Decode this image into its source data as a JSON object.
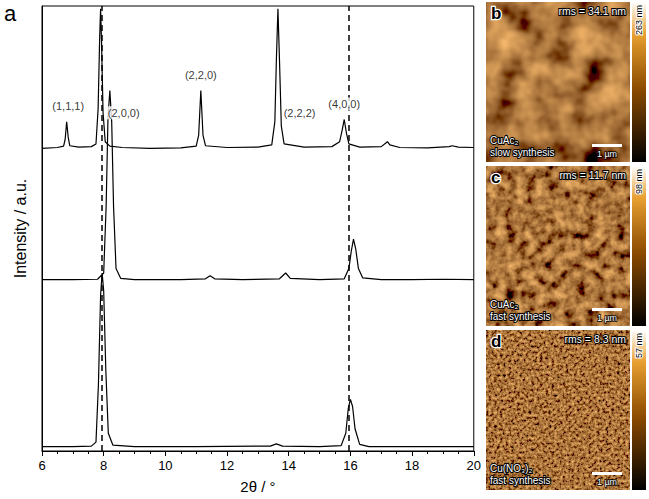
{
  "chart_data": {
    "type": "line",
    "panel_label": "a",
    "x_label": "2θ / °",
    "y_label": "Intensity / a.u.",
    "xlim": [
      6,
      20
    ],
    "xticks": [
      6,
      8,
      10,
      12,
      14,
      16,
      18,
      20
    ],
    "ylim": [
      0,
      100
    ],
    "yticks": [],
    "tick_labels": "x",
    "grid": false,
    "series": [
      {
        "color": "#000000",
        "x": [
          6.0,
          6.5,
          6.7,
          6.75,
          6.8,
          6.85,
          6.9,
          7.2,
          7.6,
          7.75,
          7.82,
          7.87,
          7.9,
          7.93,
          7.98,
          8.05,
          8.2,
          8.6,
          9.5,
          10.5,
          11.0,
          11.08,
          11.15,
          11.22,
          11.3,
          12.0,
          13.0,
          13.45,
          13.55,
          13.6,
          13.65,
          13.7,
          13.76,
          13.85,
          14.5,
          15.4,
          15.65,
          15.73,
          15.8,
          15.87,
          15.95,
          16.3,
          17.0,
          17.15,
          17.2,
          17.28,
          17.6,
          18.5,
          19.2,
          19.3,
          19.5,
          20.0
        ],
        "values": [
          68,
          68.2,
          68.5,
          70,
          74,
          70.5,
          68.6,
          68.3,
          68.4,
          69,
          77,
          93,
          99.4,
          92,
          76,
          69.5,
          68.5,
          68.2,
          68,
          68.1,
          68.5,
          71,
          81,
          71,
          68.6,
          68.2,
          68.3,
          68.8,
          74,
          88,
          99.4,
          88,
          73,
          69,
          68.3,
          68.4,
          69.5,
          72,
          74.5,
          71.5,
          69,
          68.3,
          68.4,
          69.2,
          69.5,
          68.8,
          68.2,
          68.1,
          68.4,
          68.6,
          68.3,
          68.2
        ]
      },
      {
        "color": "#000000",
        "x": [
          6.0,
          7.0,
          7.8,
          8.0,
          8.08,
          8.14,
          8.2,
          8.26,
          8.32,
          8.4,
          8.55,
          9.0,
          10.5,
          11.3,
          11.45,
          11.6,
          12.5,
          13.7,
          13.9,
          14.05,
          15.0,
          15.8,
          15.95,
          16.03,
          16.1,
          16.17,
          16.26,
          16.4,
          17.0,
          18.0,
          19.0,
          20.0
        ],
        "values": [
          38.5,
          38.5,
          38.6,
          40,
          55,
          75,
          81,
          74,
          55,
          41,
          38.8,
          38.5,
          38.5,
          38.7,
          39.4,
          38.7,
          38.5,
          38.7,
          40,
          38.8,
          38.5,
          38.7,
          41,
          45,
          47.6,
          45.5,
          41,
          38.9,
          38.5,
          38.5,
          38.6,
          38.5
        ]
      },
      {
        "color": "#000000",
        "x": [
          6.0,
          7.0,
          7.6,
          7.75,
          7.83,
          7.9,
          7.95,
          8.0,
          8.07,
          8.15,
          8.3,
          9.0,
          11.0,
          13.4,
          13.6,
          13.8,
          15.0,
          15.7,
          15.85,
          15.93,
          16.0,
          16.07,
          16.15,
          16.3,
          16.6,
          18.0,
          20.0
        ],
        "values": [
          1,
          1,
          1.1,
          2,
          15,
          35,
          40,
          36,
          18,
          4,
          1.3,
          1,
          1,
          1.1,
          1.6,
          1.1,
          1,
          1.2,
          4,
          9.5,
          11.6,
          10,
          5,
          1.5,
          1,
          1,
          1
        ]
      }
    ],
    "reference_lines": {
      "x": [
        7.95,
        15.95
      ],
      "line_style": "dashed"
    },
    "annotations": [
      {
        "text": "(1,1,1)",
        "x": 6.85,
        "y": 77.5
      },
      {
        "text": "(2,0,0)",
        "x": 8.65,
        "y": 76
      },
      {
        "text": "(2,2,0)",
        "x": 11.15,
        "y": 84.5
      },
      {
        "text": "(2,2,2)",
        "x": 14.35,
        "y": 76
      },
      {
        "text": "(4,0,0)",
        "x": 15.8,
        "y": 78
      }
    ]
  },
  "panels": [
    {
      "letter": "b",
      "rms": "rms = 34.1 nm",
      "caption": [
        "CuAc₂",
        "slow synthesis"
      ],
      "scale_bar": "1 µm",
      "colorbar_label": "263 nm"
    },
    {
      "letter": "c",
      "rms": "rms = 11.7 nm",
      "caption": [
        "CuAc₂",
        "fast synthesis"
      ],
      "scale_bar": "1 µm",
      "colorbar_label": "98 nm"
    },
    {
      "letter": "d",
      "rms": "rms = 8.3 nm",
      "caption": [
        "Cu(NO₃)₂",
        "fast synthesis"
      ],
      "scale_bar": "1 µm",
      "colorbar_label": "57 nm"
    }
  ]
}
